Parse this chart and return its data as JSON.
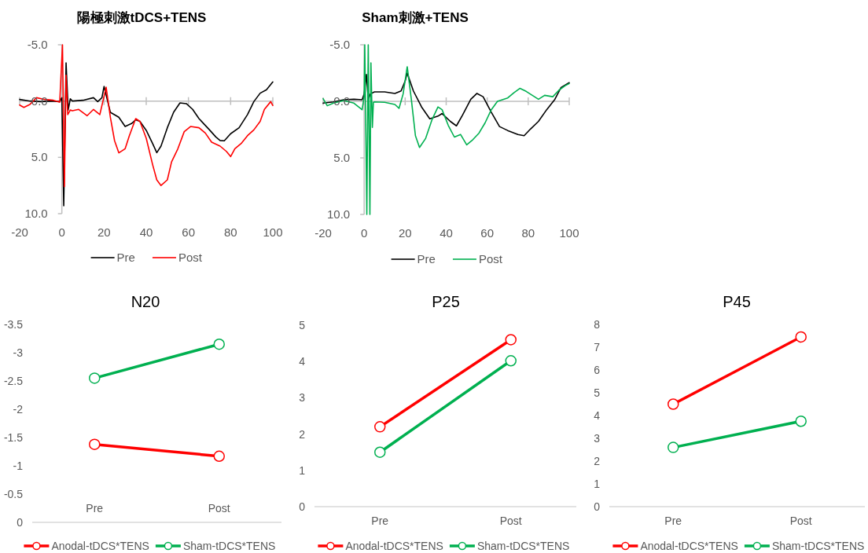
{
  "chart_data": [
    {
      "type": "line",
      "title": "陽極刺激tDCS+TENS",
      "xlim": [
        -20,
        100
      ],
      "xticks": [
        -20,
        0,
        20,
        40,
        60,
        80,
        100
      ],
      "ylim": [
        10,
        -5
      ],
      "yticks": [
        {
          "value": -5,
          "label": "-5.0"
        },
        {
          "value": 0,
          "label": "0.0"
        },
        {
          "value": 5,
          "label": "5.0"
        },
        {
          "value": 10,
          "label": "10.0"
        }
      ],
      "legend": "bottom",
      "series": [
        {
          "name": "Pre",
          "color": "#000000",
          "x": [
            -20,
            -15,
            -10,
            -5,
            -1,
            0,
            0.9,
            2,
            3,
            4,
            5,
            10,
            15,
            17,
            19,
            20,
            23,
            27,
            30,
            33,
            35,
            37,
            40,
            43,
            45,
            47,
            50,
            53,
            56,
            59,
            62,
            65,
            70,
            73,
            75,
            77,
            80,
            84,
            88,
            91,
            94,
            97,
            100
          ],
          "values": [
            -0.14,
            0,
            0.05,
            0,
            0.05,
            -0.3,
            9.3,
            -3.4,
            0.8,
            -0.2,
            0,
            -0.07,
            -0.3,
            0.05,
            -0.3,
            -1.3,
            1.0,
            1.44,
            2.26,
            2.0,
            1.67,
            1.8,
            2.6,
            3.77,
            4.58,
            4.0,
            2.37,
            0.98,
            0.16,
            0.23,
            0.74,
            1.56,
            2.56,
            3.19,
            3.5,
            3.53,
            2.9,
            2.37,
            1.2,
            0.05,
            -0.7,
            -1.0,
            -1.7
          ]
        },
        {
          "name": "Post",
          "color": "#ff0000",
          "x": [
            -20,
            -18,
            -15,
            -12,
            -8,
            -4,
            -1,
            0.3,
            1.2,
            2,
            2.8,
            4,
            5,
            8,
            12,
            15,
            18,
            21,
            23,
            25,
            27,
            30,
            32,
            35,
            37,
            40,
            43,
            45,
            47,
            50,
            52,
            55,
            58,
            61,
            65,
            68,
            71,
            75,
            78,
            80,
            82,
            85,
            88,
            91,
            94,
            96,
            99,
            100
          ],
          "values": [
            0.35,
            0.56,
            0.28,
            -0.3,
            -0.14,
            -0.07,
            0.1,
            -5,
            7.6,
            -2.3,
            1.2,
            0.8,
            0.86,
            0.74,
            1.3,
            0.74,
            1.2,
            -1.23,
            1.44,
            3.53,
            4.6,
            4.23,
            3.07,
            1.56,
            1.8,
            3.3,
            5.63,
            7.0,
            7.5,
            7.0,
            5.4,
            4.23,
            2.72,
            2.26,
            2.37,
            2.84,
            3.65,
            4.0,
            4.47,
            4.93,
            4.23,
            3.77,
            3.07,
            2.56,
            1.8,
            0.74,
            0.05,
            0.4
          ]
        }
      ]
    },
    {
      "type": "line",
      "title": "Sham刺激+TENS",
      "xlim": [
        -20,
        100
      ],
      "xticks": [
        -20,
        0,
        20,
        40,
        60,
        80,
        100
      ],
      "ylim": [
        10,
        -5
      ],
      "yticks": [
        {
          "value": -5,
          "label": "-5.0"
        },
        {
          "value": 0,
          "label": "0.0"
        },
        {
          "value": 5,
          "label": "5.0"
        },
        {
          "value": 10,
          "label": "10.0"
        }
      ],
      "legend": "bottom",
      "series": [
        {
          "name": "Pre",
          "color": "#000000",
          "x": [
            -20,
            -15,
            -10,
            -5,
            -1,
            0,
            1.1,
            2,
            3,
            5,
            10,
            15,
            18,
            20,
            21,
            24,
            28,
            32,
            36,
            38,
            42,
            45,
            48,
            52,
            55,
            58,
            62,
            66,
            70,
            75,
            78,
            81,
            85,
            89,
            93,
            96,
            100
          ],
          "values": [
            0.16,
            0.05,
            -0.14,
            -0.18,
            -0.14,
            -0.65,
            -2.37,
            -0.18,
            -0.65,
            -0.83,
            -0.83,
            -0.7,
            -0.92,
            -1.8,
            -2.5,
            -0.92,
            0.5,
            1.54,
            1.31,
            1.08,
            1.77,
            2.17,
            1.2,
            -0.18,
            -0.7,
            -0.41,
            0.97,
            2.23,
            2.58,
            2.93,
            3.04,
            2.47,
            1.77,
            0.74,
            -0.18,
            -1.22,
            -1.65
          ]
        },
        {
          "name": "Post",
          "color": "#00b050",
          "x": [
            -20,
            -18,
            -15,
            -10,
            -5,
            -1,
            0,
            0.3,
            1.3,
            2,
            2.8,
            3.3,
            4,
            4.5,
            5,
            10,
            15,
            17,
            19,
            21,
            23,
            25,
            27,
            30,
            33,
            36,
            38,
            41,
            44,
            47,
            50,
            53,
            56,
            59,
            62,
            65,
            70,
            73,
            76,
            79,
            82,
            85,
            88,
            92,
            95,
            98,
            100
          ],
          "values": [
            -0.23,
            0.39,
            0.16,
            -0.07,
            0.16,
            0.74,
            -0.4,
            -5,
            10,
            -5,
            10,
            -3.4,
            2.3,
            0.1,
            0.05,
            0.09,
            0.28,
            0.62,
            -0.65,
            -3.06,
            -0.18,
            3.04,
            4.08,
            3.27,
            1.66,
            0.5,
            0.74,
            2.12,
            3.16,
            2.93,
            3.85,
            3.39,
            2.81,
            1.89,
            0.74,
            0,
            -0.3,
            -0.76,
            -1.15,
            -0.88,
            -0.53,
            -0.18,
            -0.53,
            -0.41,
            -0.99,
            -1.38,
            -1.57
          ]
        }
      ]
    },
    {
      "type": "line",
      "title": "N20",
      "categories": [
        "Pre",
        "Post"
      ],
      "ylim": [
        0,
        -3.5
      ],
      "yticks": [
        -3.5,
        -3,
        -2.5,
        -2,
        -1.5,
        -1,
        -0.5,
        0
      ],
      "legend": "bottom",
      "marker": "circle",
      "series": [
        {
          "name": "Anodal-tDCS*TENS",
          "color": "#ff0000",
          "values": [
            -1.38,
            -1.17
          ]
        },
        {
          "name": "Sham-tDCS*TENS",
          "color": "#00b050",
          "values": [
            -2.55,
            -3.15
          ]
        }
      ]
    },
    {
      "type": "line",
      "title": "P25",
      "categories": [
        "Pre",
        "Post"
      ],
      "ylim": [
        0,
        5
      ],
      "yticks": [
        0,
        1,
        2,
        3,
        4,
        5
      ],
      "legend": "bottom",
      "marker": "circle",
      "series": [
        {
          "name": "Anodal-tDCS*TENS",
          "color": "#ff0000",
          "values": [
            2.2,
            4.6
          ]
        },
        {
          "name": "Sham-tDCS*TENS",
          "color": "#00b050",
          "values": [
            1.5,
            4.02
          ]
        }
      ]
    },
    {
      "type": "line",
      "title": "P45",
      "categories": [
        "Pre",
        "Post"
      ],
      "ylim": [
        0,
        8
      ],
      "yticks": [
        0,
        1,
        2,
        3,
        4,
        5,
        6,
        7,
        8
      ],
      "legend": "bottom",
      "marker": "circle",
      "series": [
        {
          "name": "Anodal-tDCS*TENS",
          "color": "#ff0000",
          "values": [
            4.5,
            7.45
          ]
        },
        {
          "name": "Sham-tDCS*TENS",
          "color": "#00b050",
          "values": [
            2.6,
            3.75
          ]
        }
      ]
    }
  ]
}
